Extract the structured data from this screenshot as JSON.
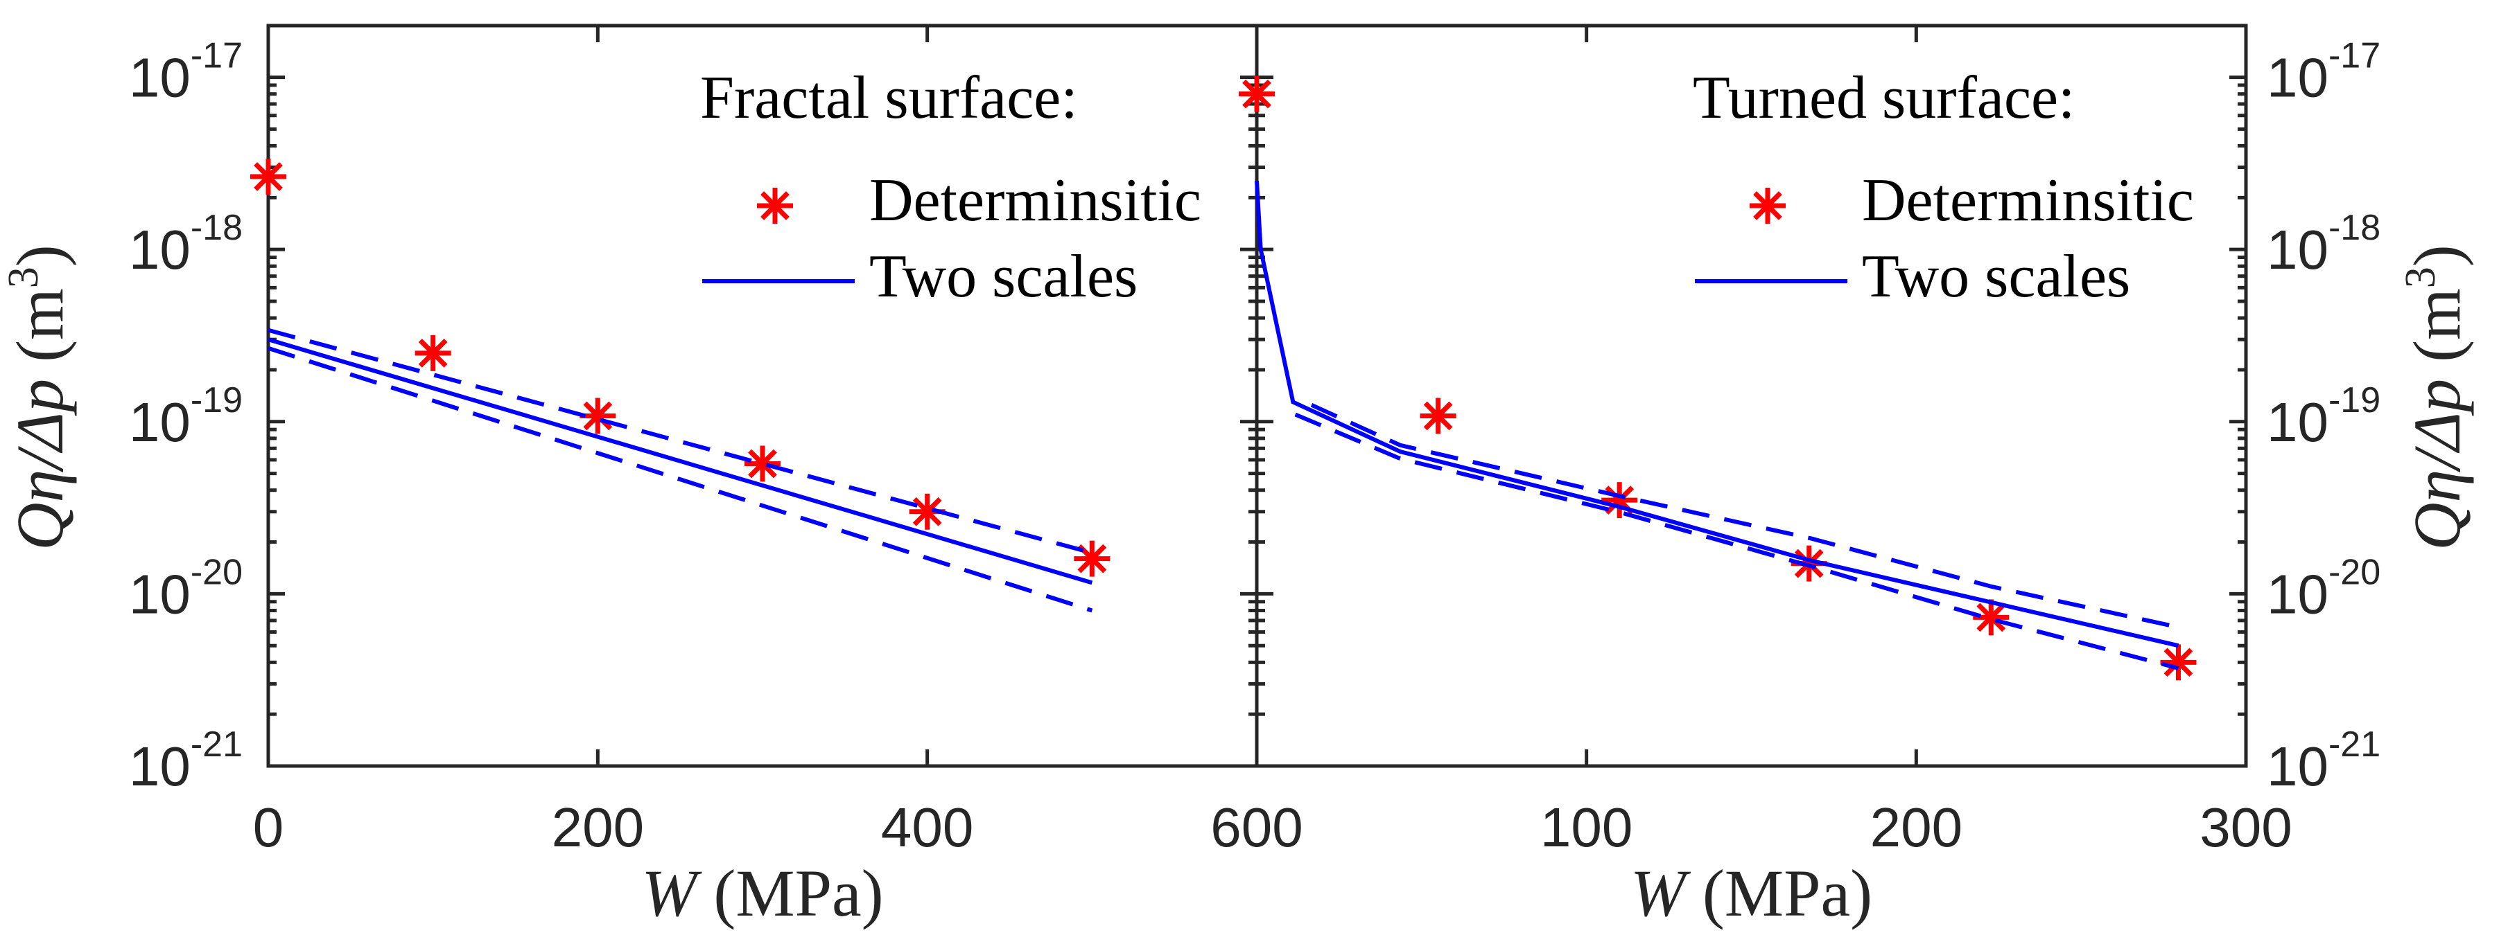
{
  "chart_data": [
    {
      "type": "scatter+line",
      "panel": "left",
      "title": "",
      "xlabel_var": "W",
      "xlabel_unit": "(MPa)",
      "ylabel_var": "Qη/Δp",
      "ylabel_unit": "(m",
      "ylabel_exp": "3",
      "ylabel_close": ")",
      "xlim": [
        0,
        600
      ],
      "xticks": [
        0,
        200,
        400,
        600
      ],
      "xtick_labels": [
        "0",
        "200",
        "400",
        "600"
      ],
      "yscale": "log",
      "ylim_exp": [
        -21,
        -16.7
      ],
      "ytick_exps": [
        -21,
        -20,
        -19,
        -18,
        -17
      ],
      "ytick_base": "10",
      "ytick_labels": [
        "-21",
        "-20",
        "-19",
        "-18",
        "-17"
      ],
      "legend_title": "Fractal surface:",
      "legend": [
        "Determinsitic",
        "Two scales"
      ],
      "legend_placement": "top-right",
      "series": [
        {
          "name": "Determinsitic",
          "style": "red-asterisk",
          "x": [
            0,
            100,
            200,
            300,
            400,
            500
          ],
          "y": [
            2.65e-18,
            2.5e-19,
            1.08e-19,
            5.7e-20,
            3e-20,
            1.6e-20
          ]
        },
        {
          "name": "Two scales",
          "style": "blue-solid",
          "x": [
            0,
            500
          ],
          "y": [
            3e-19,
            1.16e-20
          ]
        },
        {
          "name": "Two scales upper",
          "style": "blue-dashed",
          "x": [
            0,
            500
          ],
          "y": [
            3.4e-19,
            1.73e-20
          ]
        },
        {
          "name": "Two scales lower",
          "style": "blue-dashed",
          "x": [
            0,
            500
          ],
          "y": [
            2.67e-19,
            8e-21
          ]
        }
      ]
    },
    {
      "type": "scatter+line",
      "panel": "right",
      "xlabel_var": "W",
      "xlabel_unit": "(MPa)",
      "ylabel_var": "Qη/Δp",
      "ylabel_unit": "(m",
      "ylabel_exp": "3",
      "ylabel_close": ")",
      "xlim": [
        0,
        300
      ],
      "xticks": [
        100,
        200,
        300
      ],
      "xtick_labels": [
        "100",
        "200",
        "300"
      ],
      "yscale": "log",
      "ylim_exp": [
        -21,
        -16.7
      ],
      "ytick_exps": [
        -21,
        -20,
        -19,
        -18,
        -17
      ],
      "ytick_base": "10",
      "ytick_labels": [
        "-21",
        "-20",
        "-19",
        "-18",
        "-17"
      ],
      "legend_title": "Turned surface:",
      "legend": [
        "Determinsitic",
        "Two scales"
      ],
      "legend_placement": "top-right",
      "series": [
        {
          "name": "Determinsitic",
          "style": "red-asterisk",
          "x": [
            0,
            55,
            110,
            167.5,
            222.7,
            279.5
          ],
          "y": [
            8e-18,
            1.08e-19,
            3.5e-20,
            1.5e-20,
            7.3e-21,
            4e-21
          ]
        },
        {
          "name": "Two scales",
          "style": "blue-solid",
          "x": [
            0,
            1.2,
            11,
            43.5,
            110,
            168,
            223,
            279.5
          ],
          "y": [
            2.5e-18,
            1e-18,
            1.3e-19,
            6.7e-20,
            3.2e-20,
            1.56e-20,
            8.9e-21,
            5e-21
          ]
        },
        {
          "name": "Two scales upper",
          "style": "blue-dashed",
          "x": [
            16.6,
            43.5,
            110,
            168,
            223,
            279.5
          ],
          "y": [
            1.25e-19,
            7.3e-20,
            3.7e-20,
            2.1e-20,
            1.1e-20,
            6.4e-21
          ]
        },
        {
          "name": "Two scales lower",
          "style": "blue-dashed",
          "x": [
            11.7,
            43.5,
            110,
            168,
            223,
            279.5
          ],
          "y": [
            1.1e-19,
            6.1e-20,
            2.98e-20,
            1.45e-20,
            7.1e-21,
            3.7e-21
          ]
        }
      ]
    }
  ],
  "colors": {
    "marker": "#ff0000",
    "line": "#0000ff",
    "axis": "#262626"
  }
}
